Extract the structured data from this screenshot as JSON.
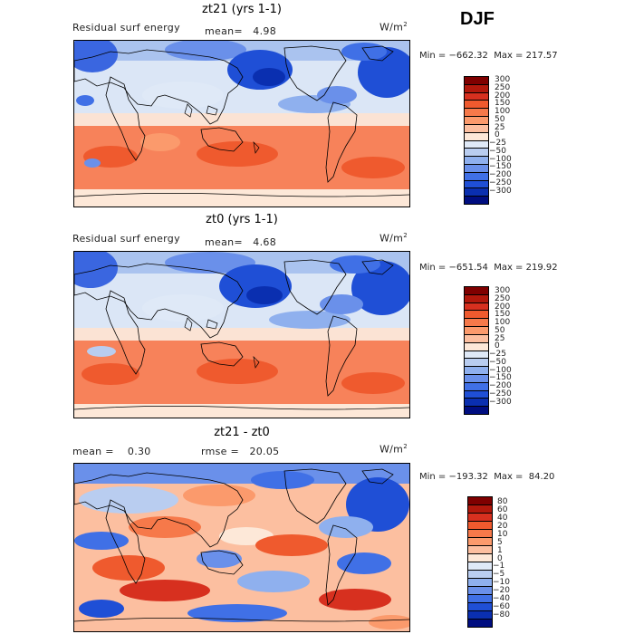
{
  "season": "DJF",
  "panels": [
    {
      "title": "zt21 (yrs 1-1)",
      "left_label": "Residual surf energy",
      "stat1": "mean=   4.98",
      "units": "W/m",
      "units_exp": "2",
      "minmax": "Min = −662.32  Max = 217.57",
      "min": -662.32,
      "max": 217.57
    },
    {
      "title": "zt0 (yrs 1-1)",
      "left_label": "Residual surf energy",
      "stat1": "mean=   4.68",
      "units": "W/m",
      "units_exp": "2",
      "minmax": "Min = −651.54  Max = 219.92",
      "min": -651.54,
      "max": 219.92
    },
    {
      "title": "zt21 - zt0",
      "left_label": "mean =    0.30",
      "stat1": "rmse =   20.05",
      "units": "W/m",
      "units_exp": "2",
      "minmax": "Min = −193.32  Max =  84.20",
      "min": -193.32,
      "max": 84.2
    }
  ],
  "colorbar_abs": {
    "labels": [
      "300",
      "250",
      "200",
      "150",
      "100",
      "50",
      "25",
      "0",
      "−25",
      "−50",
      "−100",
      "−150",
      "−200",
      "−250",
      "−300"
    ],
    "colors": [
      "#7f0000",
      "#b2180c",
      "#d7301f",
      "#ef5a2e",
      "#f6794a",
      "#fb9a6c",
      "#fcbfa0",
      "#fde8d8",
      "#dfe9f7",
      "#b9cdf0",
      "#8fb0ee",
      "#6a90ea",
      "#4070e6",
      "#1f4fd6",
      "#0a2fb0",
      "#000d80"
    ]
  },
  "colorbar_diff": {
    "labels": [
      "80",
      "60",
      "40",
      "20",
      "10",
      "5",
      "1",
      "0",
      "−1",
      "−5",
      "−10",
      "−20",
      "−40",
      "−60",
      "−80"
    ],
    "colors": [
      "#7f0000",
      "#b2180c",
      "#d7301f",
      "#ef5a2e",
      "#f6794a",
      "#fb9a6c",
      "#fcbfa0",
      "#fde8d8",
      "#dfe9f7",
      "#b9cdf0",
      "#8fb0ee",
      "#6a90ea",
      "#4070e6",
      "#1f4fd6",
      "#0a2fb0",
      "#000d80"
    ]
  }
}
